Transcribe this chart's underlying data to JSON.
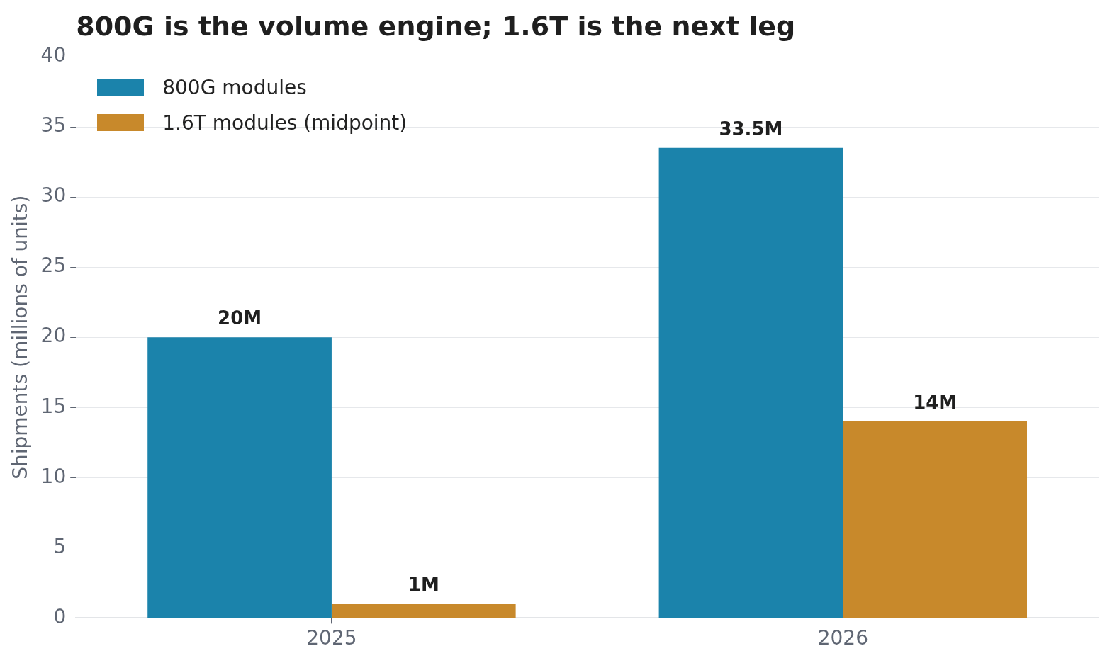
{
  "chart_data": {
    "type": "bar",
    "title": "800G is the volume engine; 1.6T is the next leg",
    "ylabel": "Shipments (millions of units)",
    "categories": [
      "2025",
      "2026"
    ],
    "series": [
      {
        "name": "800G modules",
        "color": "#1b83ab",
        "values": [
          20,
          33.5
        ],
        "value_labels": [
          "20M",
          "33.5M"
        ]
      },
      {
        "name": "1.6T modules (midpoint)",
        "color": "#c8892b",
        "values": [
          1,
          14
        ],
        "value_labels": [
          "1M",
          "14M"
        ]
      }
    ],
    "ylim": [
      0,
      40
    ],
    "yticks": [
      0,
      5,
      10,
      15,
      20,
      25,
      30,
      35,
      40
    ],
    "grid": "y",
    "legend": "top left"
  }
}
